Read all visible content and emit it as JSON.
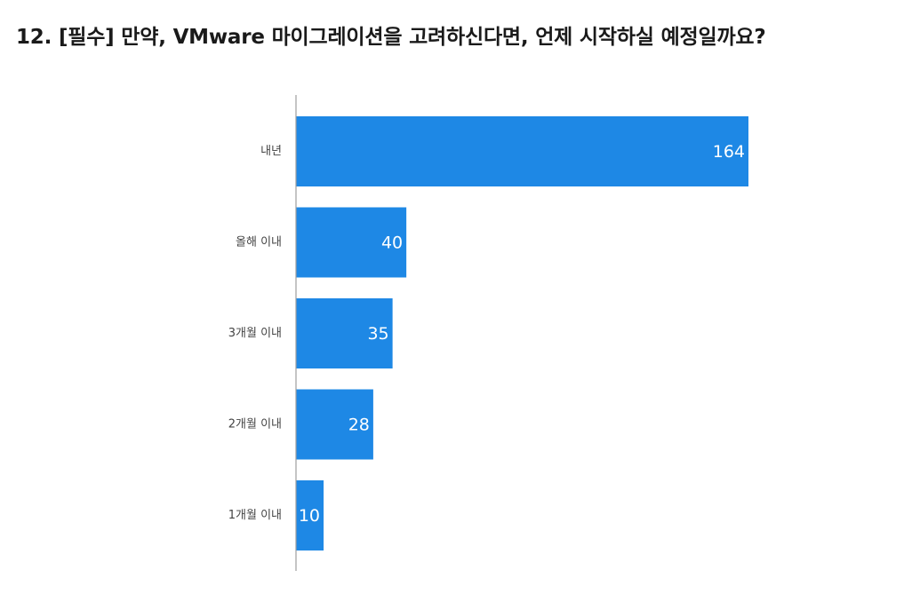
{
  "title": "12. [필수] 만약, VMware 마이그레이션을 고려하신다면, 언제 시작하실 예정일까요?",
  "colors": {
    "bar": "#1e88e5",
    "axis": "#9e9e9e",
    "label_text": "#444444",
    "value_text": "#ffffff"
  },
  "chart_data": {
    "type": "bar",
    "orientation": "horizontal",
    "categories": [
      "내년",
      "올해 이내",
      "3개월 이내",
      "2개월 이내",
      "1개월 이내"
    ],
    "values": [
      164,
      40,
      35,
      28,
      10
    ],
    "data_labels": [
      "164",
      "40",
      "35",
      "28",
      "10"
    ],
    "xlim": [
      0,
      164
    ],
    "grid": false,
    "legend": "none"
  }
}
